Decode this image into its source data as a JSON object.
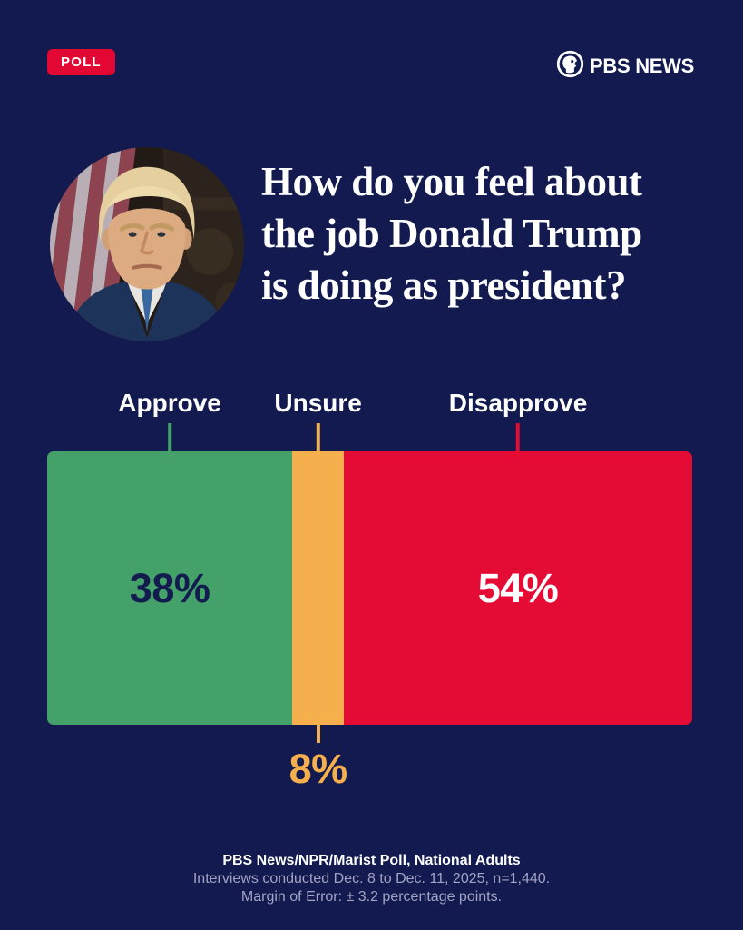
{
  "colors": {
    "background": "#121A4F",
    "badge_bg": "#E30834",
    "approve_green": "#43A169",
    "unsure_orange": "#F5AF4D",
    "disapprove_red": "#E40B34",
    "text_primary": "#FFFFFF",
    "text_muted": "#A3A3C3",
    "value_navy": "#131B4F"
  },
  "header": {
    "badge_label": "POLL",
    "brand_name": "PBS NEWS"
  },
  "icons": {
    "pbs-head-icon": "white PBS head-profile logo in a circle",
    "trump-portrait": "circular photo of Donald Trump in front of US flag"
  },
  "headline": {
    "line1": "How do you feel about",
    "line2": "the job Donald Trump",
    "line3": "is doing as president?"
  },
  "chart_data": {
    "type": "bar",
    "orientation": "horizontal_stacked",
    "title": "How do you feel about the job Donald Trump is doing as president?",
    "categories": [
      "Approve",
      "Unsure",
      "Disapprove"
    ],
    "values": [
      38,
      8,
      54
    ],
    "total": 100,
    "unit": "%",
    "value_labels": [
      "38%",
      "8%",
      "54%"
    ],
    "segment_colors": [
      "#43A169",
      "#F5AF4D",
      "#E40B34"
    ],
    "value_label_colors": [
      "#131B4F",
      "#F5AF4D",
      "#FFFFFF"
    ],
    "value_label_placement": [
      "inside",
      "below",
      "inside"
    ],
    "category_label_position": "above-with-tick",
    "legend": "none",
    "grid": false
  },
  "footnote": {
    "line1": "PBS News/NPR/Marist Poll, National Adults",
    "line2": "Interviews conducted Dec. 8 to Dec. 11, 2025, n=1,440.",
    "line3": "Margin of Error: ± 3.2 percentage points."
  }
}
